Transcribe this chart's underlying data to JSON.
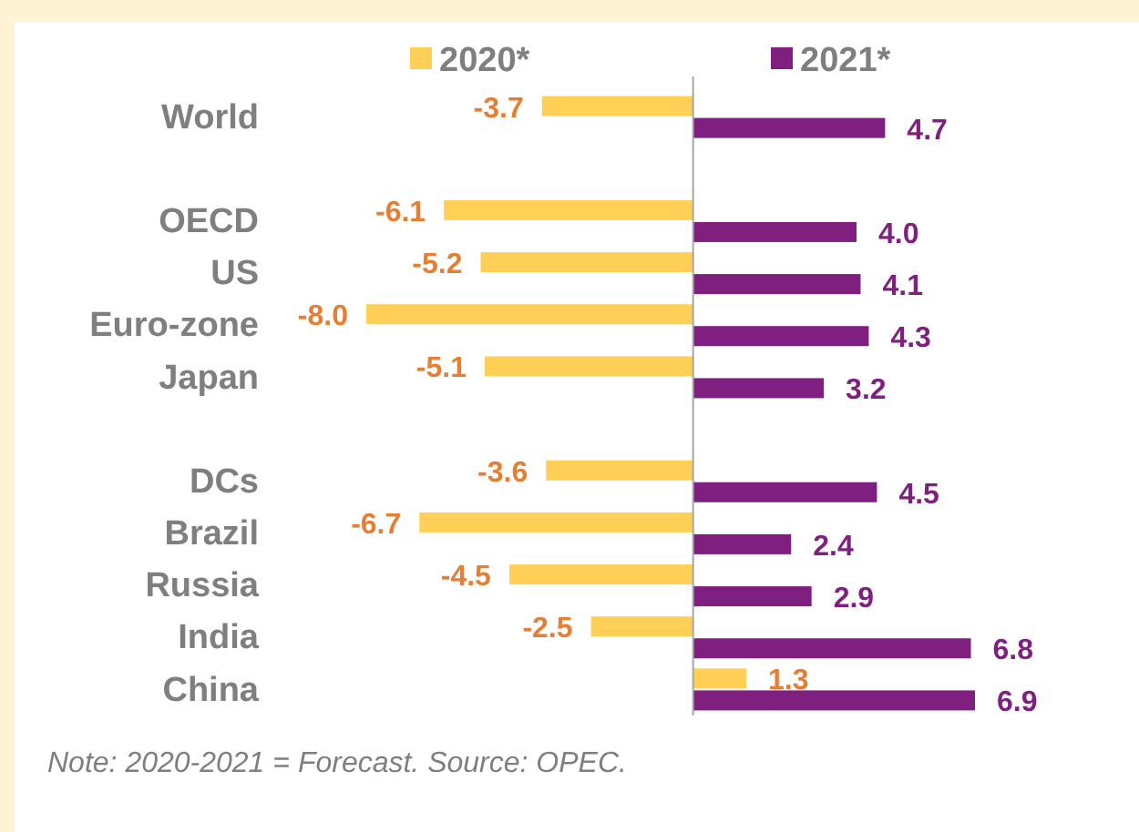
{
  "chart_data": {
    "type": "bar",
    "orientation": "horizontal",
    "categories": [
      "World",
      null,
      "OECD",
      "US",
      "Euro-zone",
      "Japan",
      null,
      "DCs",
      "Brazil",
      "Russia",
      "India",
      "China"
    ],
    "series": [
      {
        "name": "2020*",
        "color": "#ffd055",
        "values": [
          -3.7,
          null,
          -6.1,
          -5.2,
          -8.0,
          -5.1,
          null,
          -3.6,
          -6.7,
          -4.5,
          -2.5,
          1.3
        ],
        "value_labels": [
          "-3.7",
          null,
          "-6.1",
          "-5.2",
          "-8.0",
          "-5.1",
          null,
          "-3.6",
          "-6.7",
          "-4.5",
          "-2.5",
          "1.3"
        ]
      },
      {
        "name": "2021*",
        "color": "#7f1f7f",
        "values": [
          4.7,
          null,
          4.0,
          4.1,
          4.3,
          3.2,
          null,
          4.5,
          2.4,
          2.9,
          6.8,
          6.9
        ],
        "value_labels": [
          "4.7",
          null,
          "4.0",
          "4.1",
          "4.3",
          "3.2",
          null,
          "4.5",
          "2.4",
          "2.9",
          "6.8",
          "6.9"
        ]
      }
    ],
    "tick_labels": "y",
    "legend": "top",
    "annotations": [
      "Note: 2020-2021 = Forecast. Source: OPEC."
    ]
  }
}
